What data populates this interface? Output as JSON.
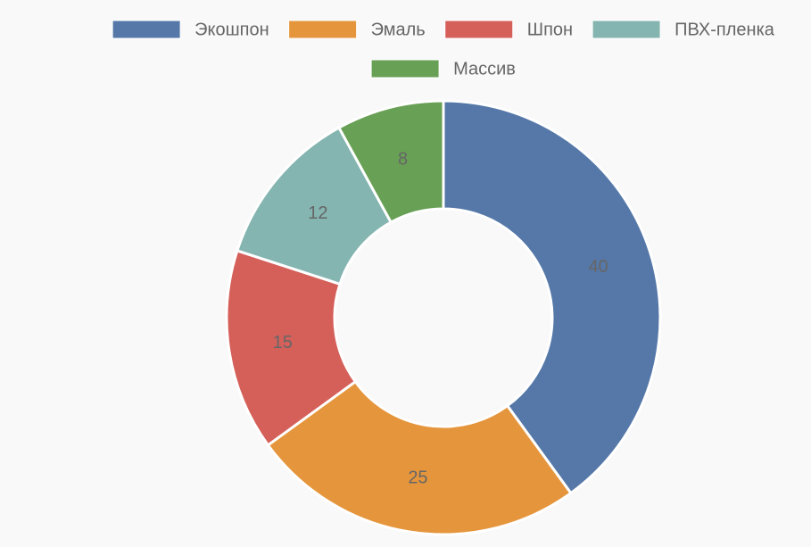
{
  "chart_data": {
    "type": "doughnut",
    "categories": [
      "Экошпон",
      "Эмаль",
      "Шпон",
      "ПВХ-пленка",
      "Массив"
    ],
    "values": [
      40,
      25,
      15,
      12,
      8
    ],
    "colors": [
      "#5578a8",
      "#e5963d",
      "#d5605a",
      "#84b5b0",
      "#68a055"
    ],
    "legend": "top"
  }
}
